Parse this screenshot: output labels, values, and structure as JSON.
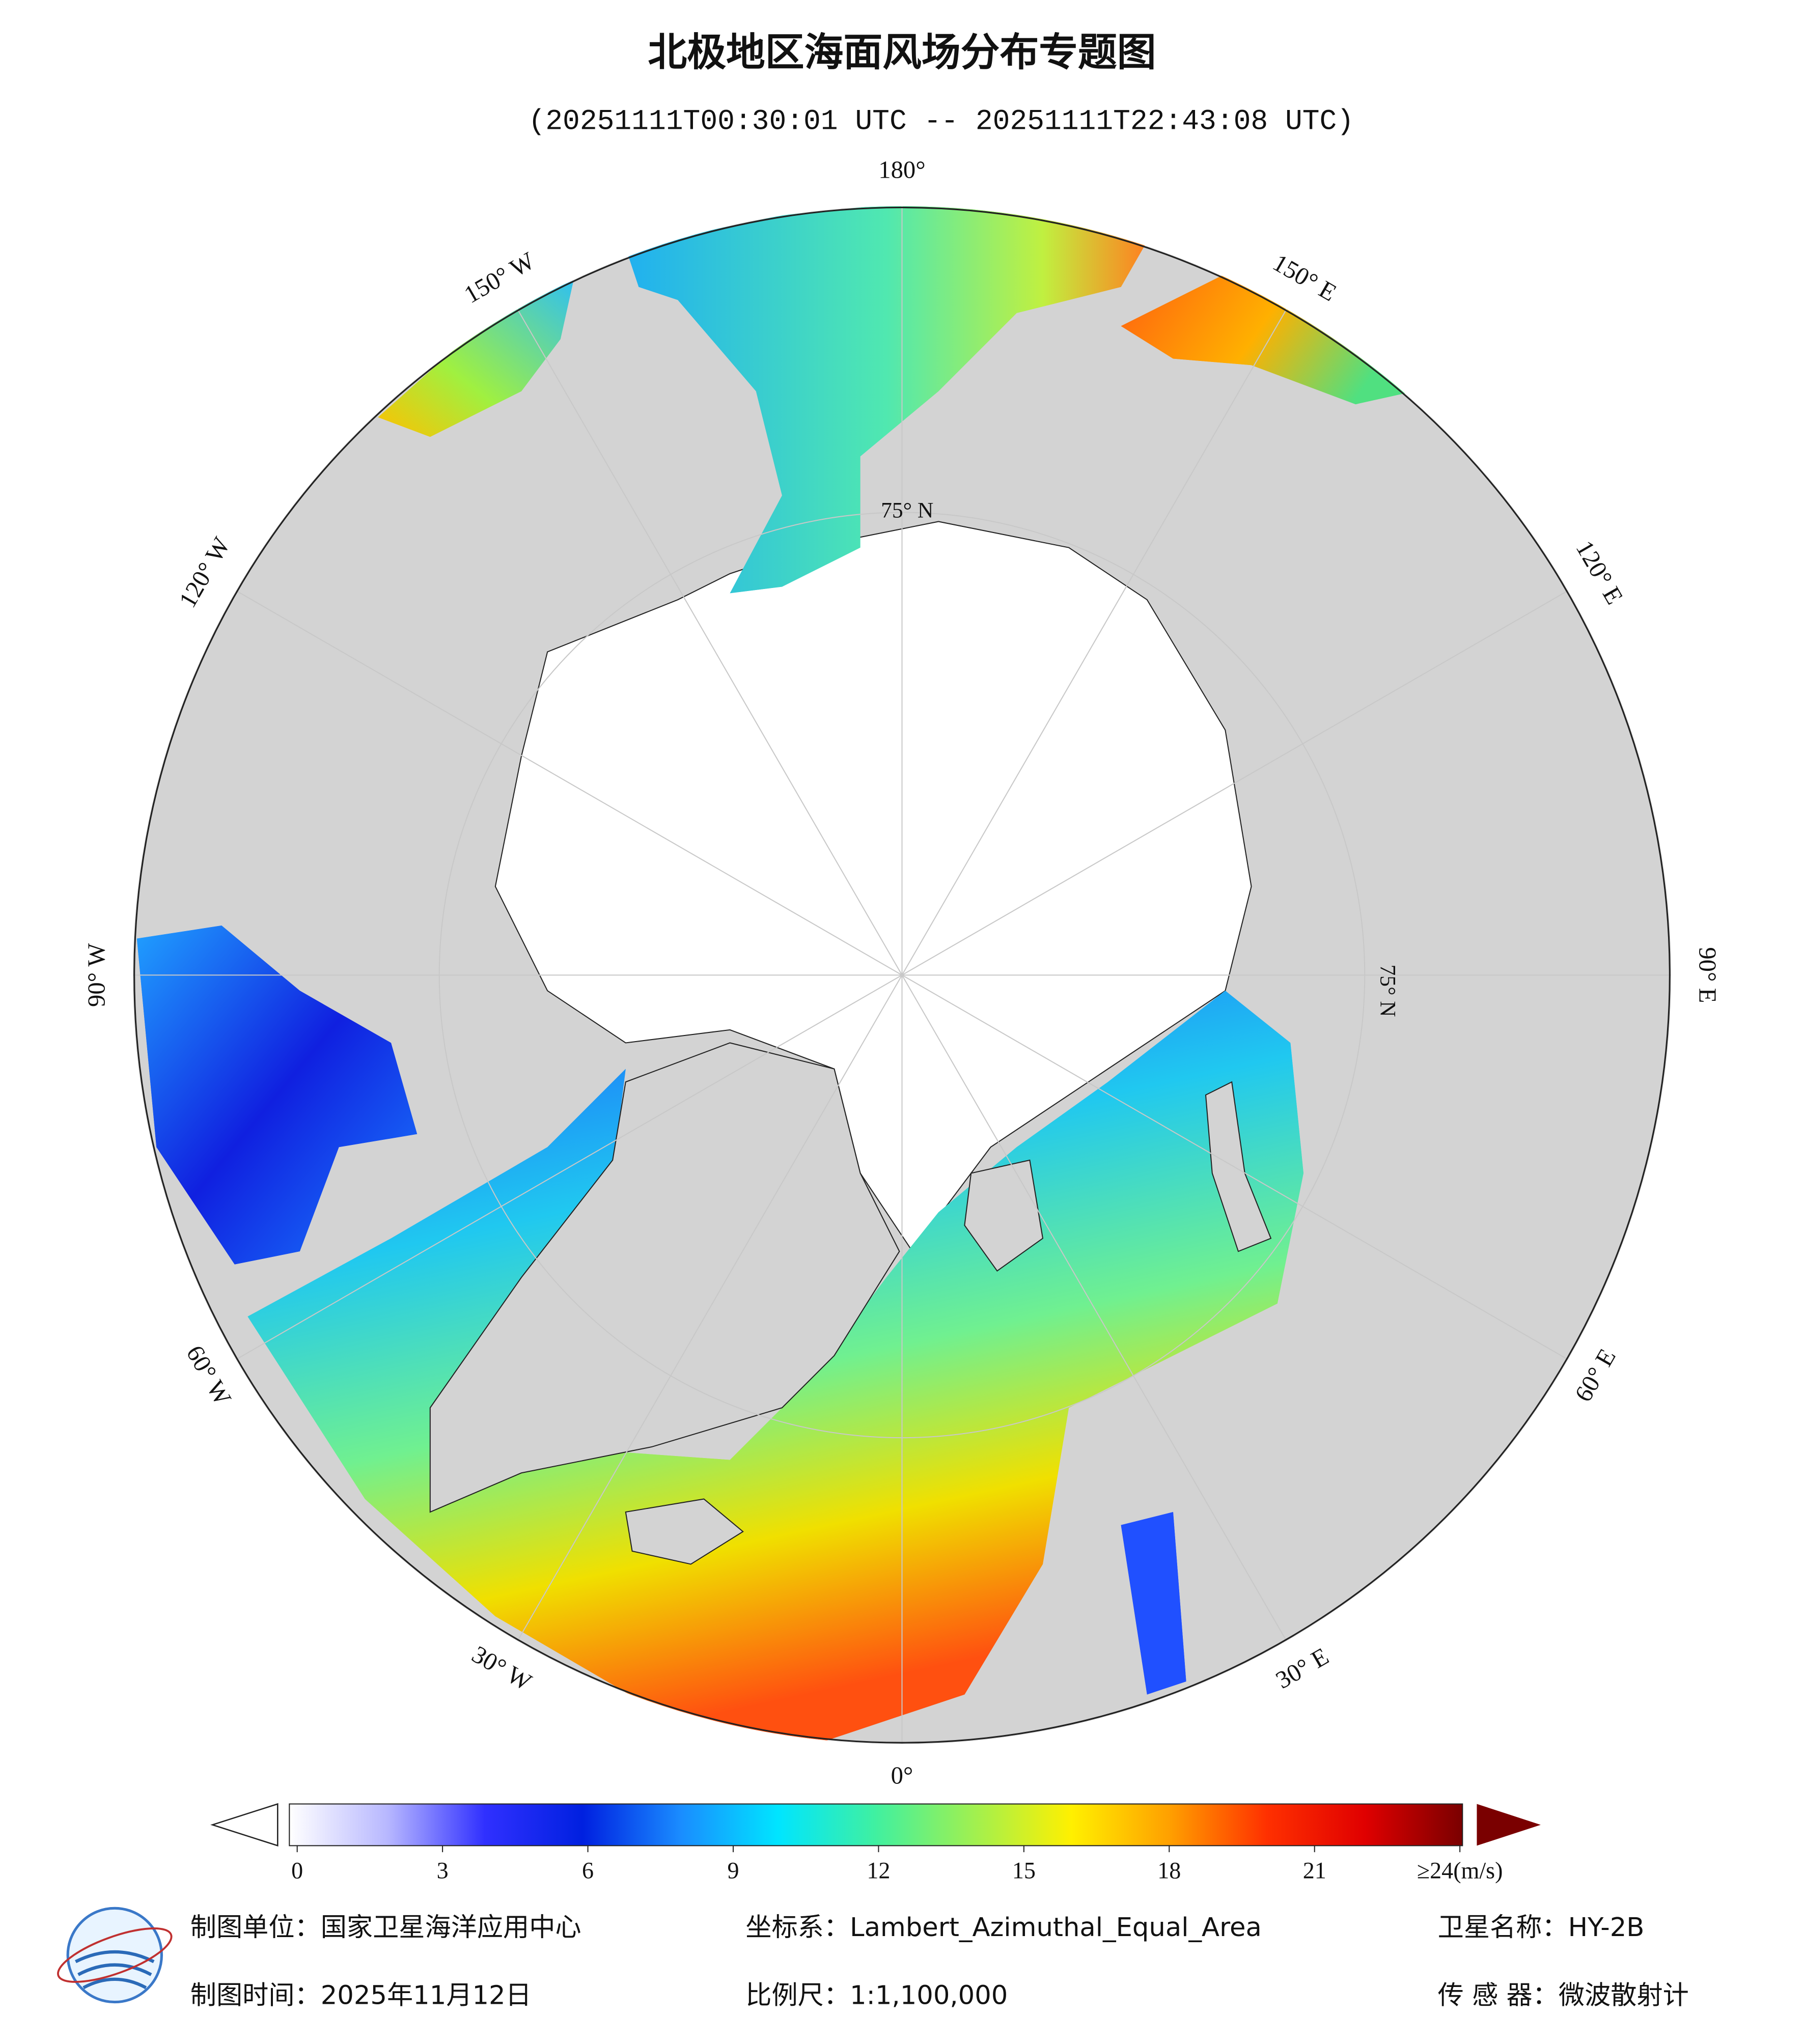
{
  "title": "北极地区海面风场分布专题图",
  "subtitle": "(20251111T00:30:01 UTC -- 20251111T22:43:08 UTC)",
  "map": {
    "lon_labels": [
      "0°",
      "30° E",
      "60° E",
      "90° E",
      "120° E",
      "150° E",
      "180°",
      "150° W",
      "120° W",
      "90° W",
      "60° W",
      "30° W"
    ],
    "lat_label": "75° N"
  },
  "colorbar": {
    "range": [
      0,
      24
    ],
    "ticks": [
      0,
      3,
      6,
      9,
      12,
      15,
      18,
      21,
      {
        "value": 24,
        "label": "≥24(m/s)"
      }
    ],
    "colors": [
      "#ffffff",
      "#b8b8ff",
      "#3030ff",
      "#0020e0",
      "#1a8cff",
      "#00e5ff",
      "#40f0a0",
      "#a0f050",
      "#fff000",
      "#ffa000",
      "#ff3000",
      "#e00000",
      "#7a0000"
    ]
  },
  "footer": {
    "unit": "制图单位：国家卫星海洋应用中心",
    "crs": "坐标系：Lambert_Azimuthal_Equal_Area",
    "satellite": "卫星名称：HY-2B",
    "date": "制图时间：2025年11月12日",
    "scale": "比例尺：1:1,100,000",
    "sensor": "传 感 器：微波散射计"
  }
}
